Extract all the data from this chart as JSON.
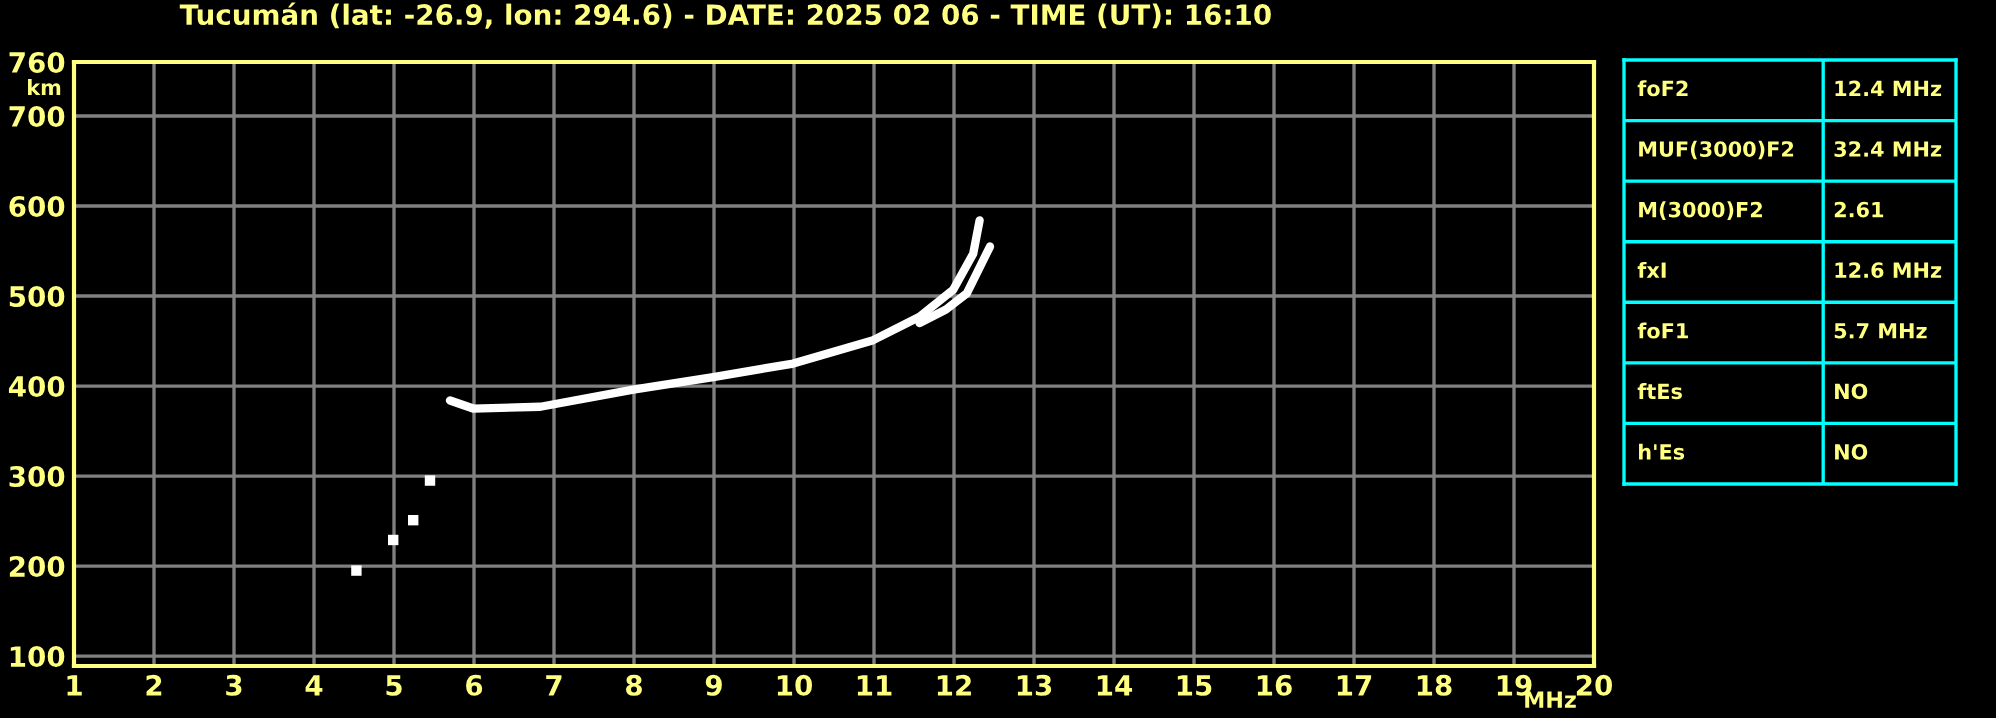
{
  "chart_data": [
    {
      "type": "line",
      "title": "Tucumán (lat: -26.9, lon: 294.6) - DATE: 2025 02 06 - TIME (UT): 16:10",
      "xlabel": "MHz",
      "ylabel": "km",
      "xlim": [
        1,
        20
      ],
      "ylim": [
        89,
        760
      ],
      "xticks": [
        1,
        2,
        3,
        4,
        5,
        6,
        7,
        8,
        9,
        10,
        11,
        12,
        13,
        14,
        15,
        16,
        17,
        18,
        19,
        20
      ],
      "yticks": [
        100,
        200,
        300,
        400,
        500,
        600,
        700,
        760
      ],
      "grid": true,
      "marker": "none",
      "line_style": "solid",
      "series": [
        {
          "color": "#ffffff",
          "x": [
            5.7,
            5.99,
            6.83,
            7.99,
            8.99,
            9.99,
            10.99,
            11.57,
            11.99,
            12.24,
            12.32
          ],
          "values": [
            384,
            375,
            377,
            396,
            410,
            425,
            451,
            477,
            507,
            547,
            584
          ]
        },
        {
          "color": "#ffffff",
          "x": [
            11.57,
            11.9,
            12.16,
            12.45
          ],
          "values": [
            470,
            485,
            503,
            555
          ]
        },
        {
          "color": "#ffffff",
          "type": "scatter",
          "marker": "square",
          "x": [
            4.53,
            4.99,
            5.24,
            5.45
          ],
          "values": [
            195,
            229,
            251,
            295
          ]
        }
      ]
    },
    {
      "type": "other",
      "annotations": [
        "foF2",
        "12.4 MHz",
        "MUF(3000)F2",
        "32.4 MHz",
        "M(3000)F2",
        "2.61",
        "fxI",
        "12.6 MHz",
        "foF1",
        "5.7 MHz",
        "ftEs",
        "NO",
        "h'Es",
        "NO"
      ]
    }
  ]
}
